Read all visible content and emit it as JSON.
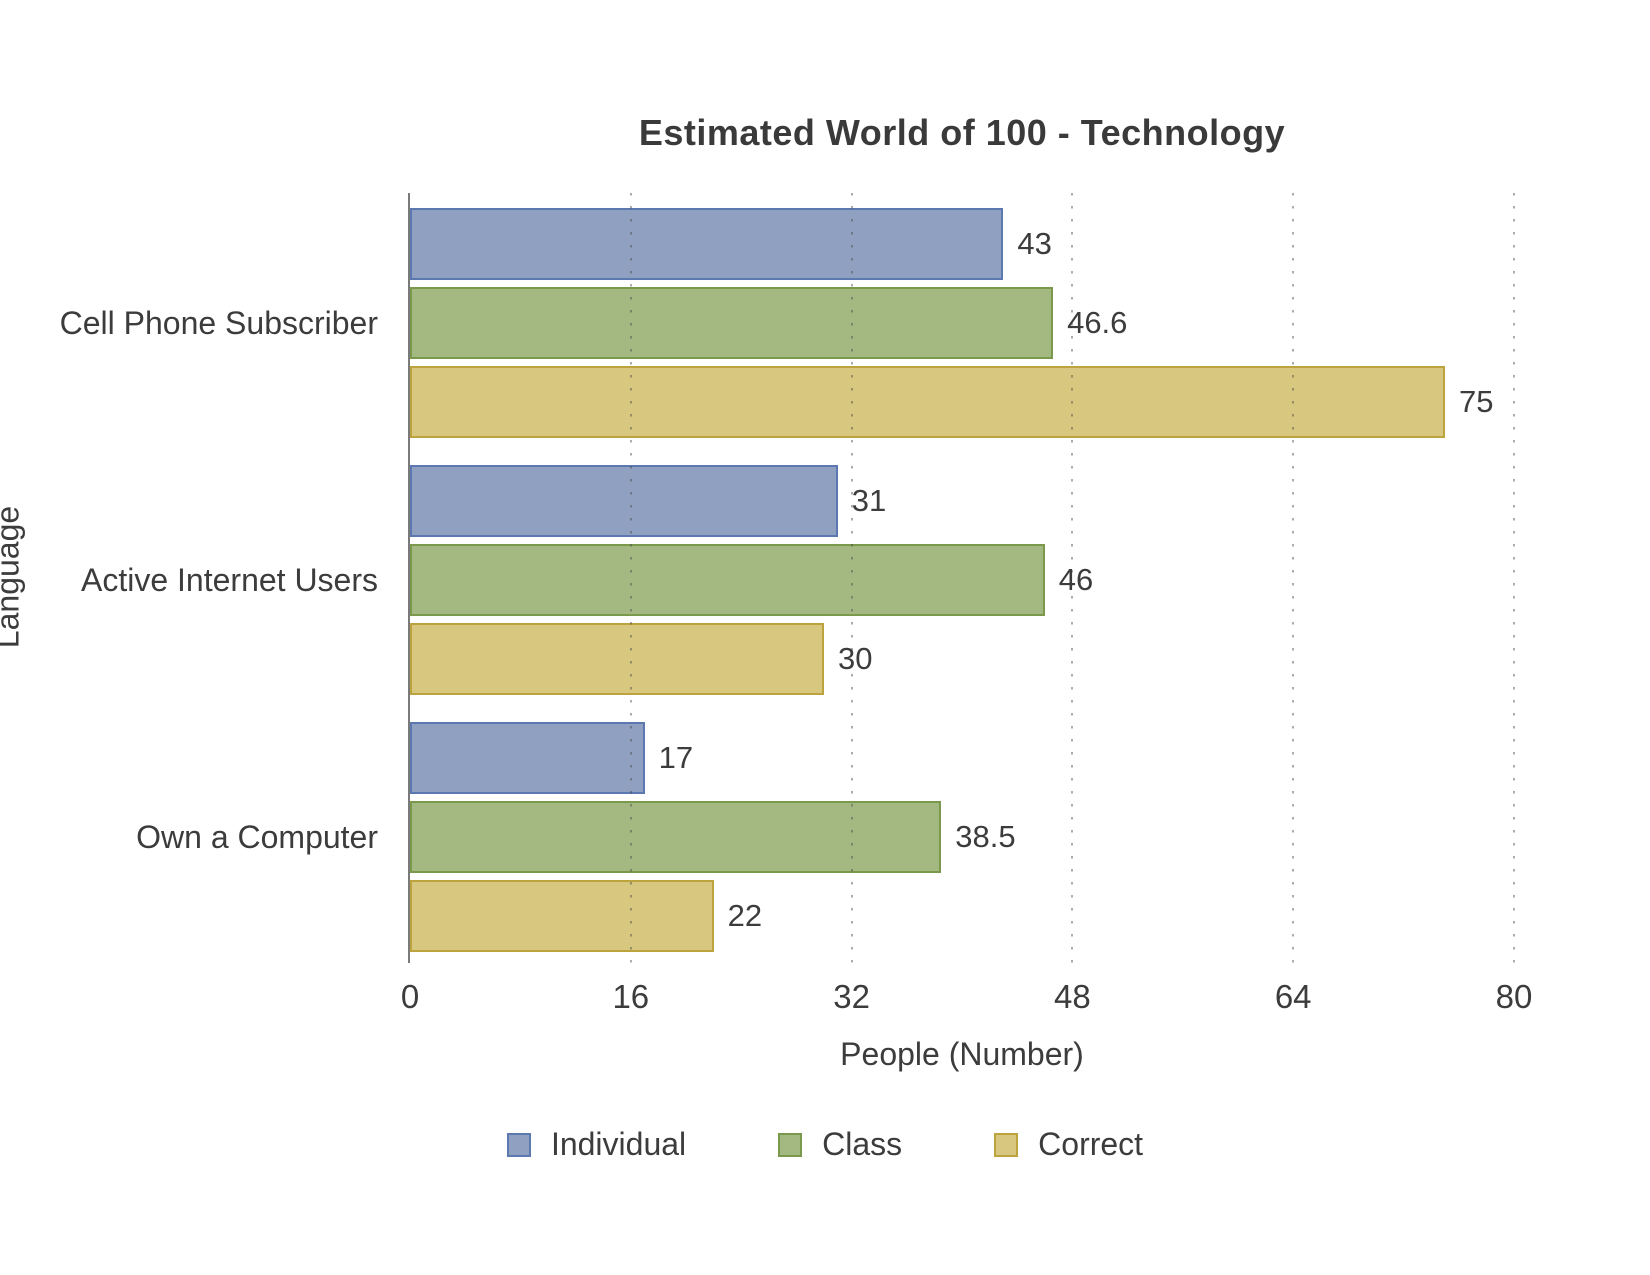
{
  "chart": {
    "title": "Estimated World of 100 - Technology",
    "xlabel": "People (Number)",
    "ylabel": "Language"
  },
  "chart_data": {
    "type": "bar",
    "orientation": "horizontal",
    "title": "Estimated World of 100 - Technology",
    "xlabel": "People (Number)",
    "ylabel": "Language",
    "categories": [
      "Cell Phone Subscriber",
      "Active Internet Users",
      "Own a Computer"
    ],
    "series": [
      {
        "name": "Individual",
        "fill_color": "#8fa0c0",
        "border_color": "#5b78b0",
        "values": [
          43,
          31,
          17
        ]
      },
      {
        "name": "Class",
        "fill_color": "#a4b881",
        "border_color": "#7a994c",
        "values": [
          46.6,
          46,
          38.5
        ]
      },
      {
        "name": "Correct",
        "fill_color": "#d8c77e",
        "border_color": "#bda33d",
        "values": [
          75,
          30,
          22
        ]
      }
    ],
    "value_labels": [
      [
        "43",
        "31",
        "17"
      ],
      [
        "46.6",
        "46",
        "38.5"
      ],
      [
        "75",
        "30",
        "22"
      ]
    ],
    "xlim": [
      0,
      80
    ],
    "xticks": [
      "0",
      "16",
      "32",
      "48",
      "64",
      "80"
    ],
    "grid": "dotted-vertical",
    "legend_position": "bottom"
  }
}
